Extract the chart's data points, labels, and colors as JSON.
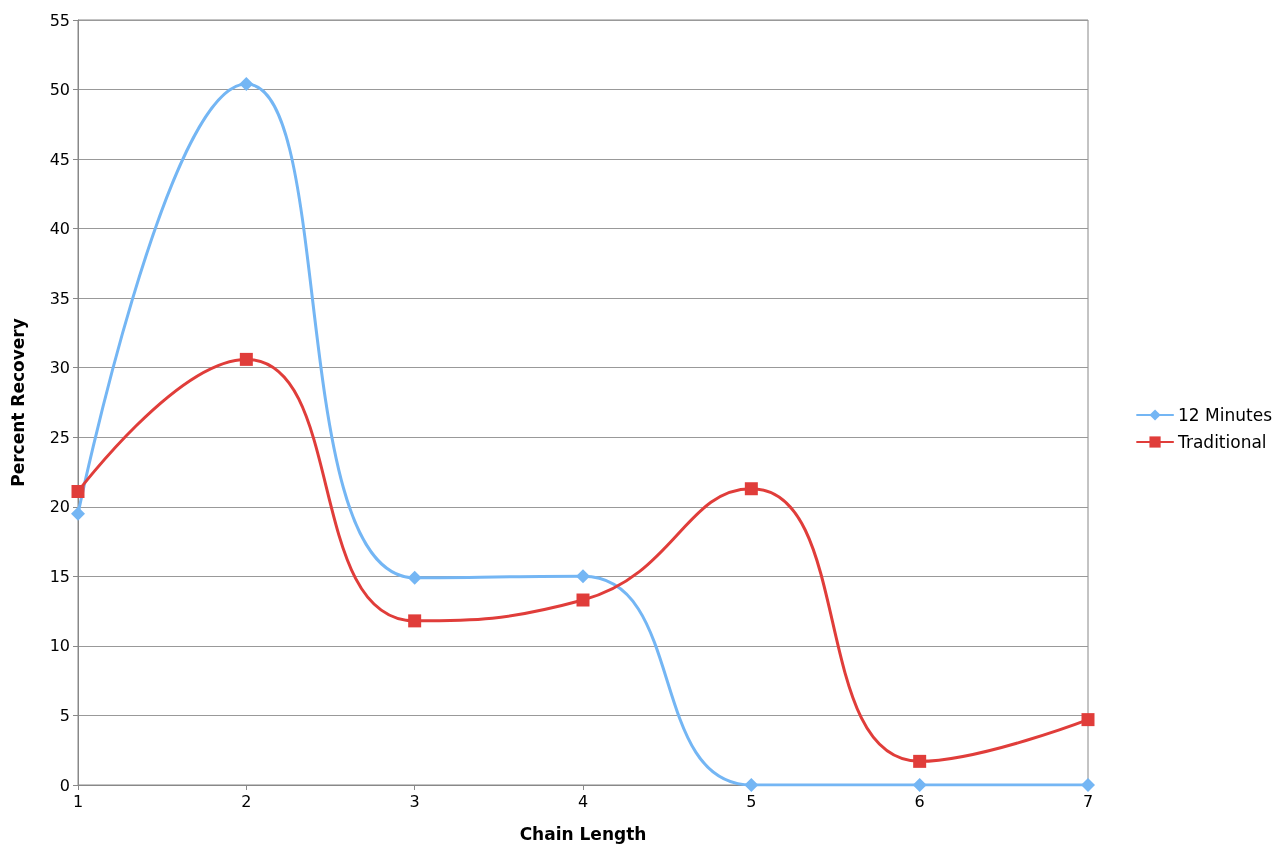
{
  "chart_data": {
    "type": "line",
    "xlabel": "Chain Length",
    "ylabel": "Percent Recovery",
    "x": [
      1,
      2,
      3,
      4,
      5,
      6,
      7
    ],
    "series": [
      {
        "name": "12 Minutes",
        "color": "#74b6f4",
        "marker": "diamond",
        "values": [
          19.5,
          50.4,
          14.9,
          15.0,
          0,
          0,
          0
        ]
      },
      {
        "name": "Traditional",
        "color": "#e03d3a",
        "marker": "square",
        "values": [
          21.1,
          30.6,
          11.8,
          13.3,
          21.3,
          1.7,
          4.7
        ]
      }
    ],
    "xlim": [
      1,
      7
    ],
    "xticks": [
      1,
      2,
      3,
      4,
      5,
      6,
      7
    ],
    "ylim": [
      0,
      55
    ],
    "yticks": [
      0,
      5,
      10,
      15,
      20,
      25,
      30,
      35,
      40,
      45,
      50,
      55
    ],
    "grid": "y",
    "legend": "right",
    "line_style": "solid"
  }
}
